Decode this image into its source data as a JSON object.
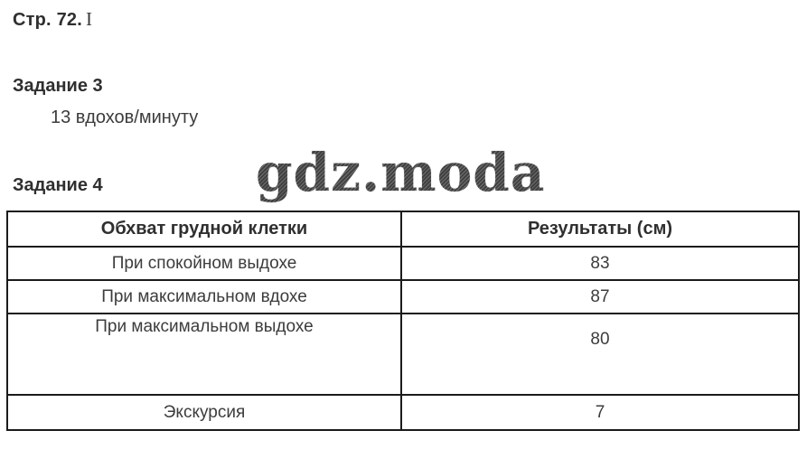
{
  "page": {
    "reference": "Стр. 72.",
    "reference_suffix": "I"
  },
  "watermark": "gdz.moda",
  "task3": {
    "title": "Задание 3",
    "answer": "13 вдохов/минуту"
  },
  "task4": {
    "title": "Задание 4"
  },
  "table": {
    "headers": [
      "Обхват грудной клетки",
      "Результаты (см)"
    ],
    "rows": [
      {
        "label": "При спокойном выдохе",
        "value": "83"
      },
      {
        "label": "При максимальном вдохе",
        "value": "87"
      },
      {
        "label": "При максимальном выдохе",
        "value": "80"
      },
      {
        "label": "Экскурсия",
        "value": "7"
      }
    ]
  },
  "colors": {
    "text": "#3c3c3c",
    "heading": "#2f2f2f",
    "border": "#1b1b1b",
    "watermark": "#5f5f5f",
    "background": "#ffffff"
  }
}
